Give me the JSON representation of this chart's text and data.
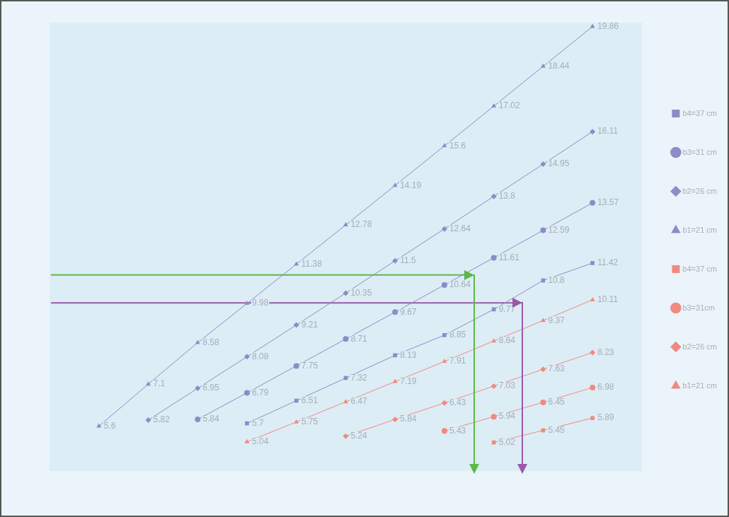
{
  "chart_data": {
    "type": "line",
    "categories": [
      null,
      null,
      null,
      null,
      null,
      null,
      null,
      null,
      null,
      null,
      null,
      null,
      null
    ],
    "series": [
      {
        "name": "b4=37 cm",
        "color": "#8c8cc8",
        "marker": "square",
        "values": [
          null,
          null,
          null,
          null,
          5.7,
          6.51,
          7.32,
          8.13,
          8.85,
          9.77,
          10.8,
          11.42,
          null
        ]
      },
      {
        "name": "b3=31 cm",
        "color": "#8c8cc8",
        "marker": "circle",
        "values": [
          null,
          null,
          null,
          5.84,
          6.79,
          7.75,
          8.71,
          9.67,
          10.64,
          11.61,
          12.59,
          13.57,
          null
        ]
      },
      {
        "name": "b2=26 cm",
        "color": "#8c8cc8",
        "marker": "diamond",
        "values": [
          null,
          null,
          5.82,
          6.95,
          8.08,
          9.21,
          10.35,
          11.5,
          12.64,
          13.8,
          14.95,
          16.11,
          null
        ]
      },
      {
        "name": "b1=21 cm",
        "color": "#8c8cc8",
        "marker": "triangle",
        "values": [
          null,
          5.6,
          7.1,
          8.58,
          9.98,
          11.38,
          12.78,
          14.19,
          15.6,
          17.02,
          18.44,
          19.86,
          null
        ]
      },
      {
        "name": "b4=37 cm",
        "color": "#f08a80",
        "marker": "square",
        "values": [
          null,
          null,
          null,
          null,
          null,
          null,
          null,
          null,
          null,
          5.02,
          5.45,
          5.89,
          null
        ]
      },
      {
        "name": "b3=31cm",
        "color": "#f08a80",
        "marker": "circle",
        "values": [
          null,
          null,
          null,
          null,
          null,
          null,
          null,
          null,
          5.43,
          5.94,
          6.45,
          6.98,
          null
        ]
      },
      {
        "name": "b2=26 cm",
        "color": "#f08a80",
        "marker": "diamond",
        "values": [
          null,
          null,
          null,
          null,
          null,
          null,
          5.24,
          5.84,
          6.43,
          7.03,
          7.63,
          8.23,
          null
        ]
      },
      {
        "name": "b1=21 cm",
        "color": "#f08a80",
        "marker": "triangle",
        "values": [
          null,
          null,
          null,
          null,
          5.04,
          5.75,
          6.47,
          7.19,
          7.91,
          8.64,
          9.37,
          10.11,
          null
        ]
      }
    ],
    "ref_lines": [
      {
        "axis": "y",
        "value": 11,
        "color": "#5cb848"
      },
      {
        "axis": "y",
        "value": 10,
        "color": "#9b59a8"
      }
    ],
    "data_labels": true,
    "grid": false,
    "legend": "right",
    "tick_labels": false
  }
}
